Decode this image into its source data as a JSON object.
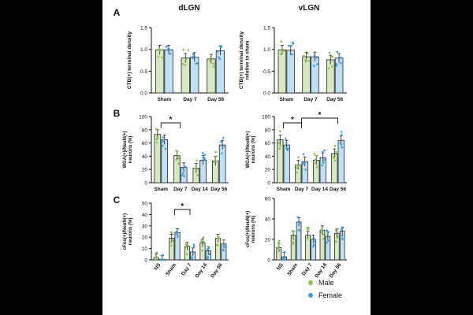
{
  "figure": {
    "panel_letters": [
      "A",
      "B",
      "C"
    ],
    "column_titles": [
      "dLGN",
      "vLGN"
    ],
    "legend": [
      {
        "label": "Male",
        "color": "#8bbf4e"
      },
      {
        "label": "Female",
        "color": "#3a9fe0"
      }
    ],
    "colors": {
      "male_bar": "#d6e9c0",
      "female_bar": "#bfe1f7",
      "male_dot": "#8bbf4e",
      "female_dot": "#3a9fe0",
      "axis": "#111111"
    }
  },
  "chart_data": [
    {
      "type": "bar",
      "panel": "A",
      "title": "dLGN",
      "ylabel": "CTB(+) terminal density",
      "ylim": [
        0.0,
        1.5
      ],
      "yticks": [
        "0.0",
        "0.5",
        "1.0",
        "1.5"
      ],
      "categories": [
        "Sham",
        "Day 7",
        "Day 56"
      ],
      "series": [
        {
          "name": "Male",
          "values": [
            0.99,
            0.8,
            0.78
          ]
        },
        {
          "name": "Female",
          "values": [
            0.99,
            0.82,
            0.97
          ]
        }
      ]
    },
    {
      "type": "bar",
      "panel": "A",
      "title": "vLGN",
      "ylabel": "CTB(+) terminal density relative to sham",
      "ylim": [
        0.0,
        1.5
      ],
      "yticks": [
        "0.0",
        "0.5",
        "1.0",
        "1.5"
      ],
      "categories": [
        "Sham",
        "Day 7",
        "Day 56"
      ],
      "series": [
        {
          "name": "Male",
          "values": [
            0.99,
            0.83,
            0.76
          ]
        },
        {
          "name": "Female",
          "values": [
            0.98,
            0.83,
            0.8
          ]
        }
      ]
    },
    {
      "type": "bar",
      "panel": "B",
      "ylabel": "WGA(+)/NeuN(+) neurons (%)",
      "ylim": [
        0,
        100
      ],
      "yticks": [
        "0",
        "20",
        "40",
        "60",
        "80",
        "100"
      ],
      "categories": [
        "Sham",
        "Day 7",
        "Day 14",
        "Day 56"
      ],
      "series": [
        {
          "name": "Male",
          "values": [
            73,
            41,
            22,
            33
          ]
        },
        {
          "name": "Female",
          "values": [
            65,
            23,
            34,
            57
          ]
        }
      ],
      "annotations": [
        "*"
      ]
    },
    {
      "type": "bar",
      "panel": "B",
      "ylabel": "WGA(+)/NeuN(+) neurons (%)",
      "ylim": [
        0,
        100
      ],
      "yticks": [
        "0",
        "20",
        "40",
        "60",
        "80",
        "100"
      ],
      "categories": [
        "Sham",
        "Day 7",
        "Day 14",
        "Day 56"
      ],
      "series": [
        {
          "name": "Male",
          "values": [
            65,
            27,
            34,
            44
          ]
        },
        {
          "name": "Female",
          "values": [
            57,
            32,
            38,
            64
          ]
        }
      ],
      "annotations": [
        "*",
        "*"
      ]
    },
    {
      "type": "bar",
      "panel": "C",
      "ylabel": "cFos(+)/NeuN(+) neurons (%)",
      "ylim": [
        0,
        50
      ],
      "yticks": [
        "0",
        "10",
        "20",
        "30",
        "40",
        "50"
      ],
      "categories": [
        "NS",
        "Sham",
        "Day 7",
        "Day 14",
        "Day 56"
      ],
      "series": [
        {
          "name": "Male",
          "values": [
            2,
            19,
            12,
            15,
            19
          ]
        },
        {
          "name": "Female",
          "values": [
            0.5,
            24,
            7,
            8,
            14
          ]
        }
      ],
      "annotations": [
        "*"
      ]
    },
    {
      "type": "bar",
      "panel": "C",
      "ylabel": "cFos(+)/NeuN(+) neurons (%)",
      "ylim": [
        0,
        60
      ],
      "yticks": [
        "0",
        "20",
        "40",
        "60"
      ],
      "categories": [
        "NS",
        "Sham",
        "Day 7",
        "Day 14",
        "Day 56"
      ],
      "series": [
        {
          "name": "Male",
          "values": [
            12,
            24,
            24,
            29,
            26
          ]
        },
        {
          "name": "Female",
          "values": [
            3,
            37,
            20,
            23,
            28
          ]
        }
      ]
    }
  ]
}
